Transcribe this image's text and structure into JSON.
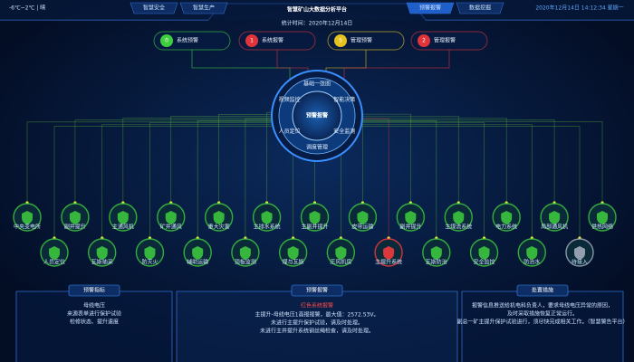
{
  "header": {
    "weather": "-6℃~2℃ | 晴",
    "nav_left": [
      "智慧安全",
      "智慧生产"
    ],
    "title": "智慧矿山大数据分析平台",
    "subtitle": "统计时间：2020年12月14日",
    "nav_right": [
      "预警报警",
      "数据挖掘"
    ],
    "active_nav": 0,
    "datetime": "2020年12月14日 14:12:34 星期一"
  },
  "alarms": [
    {
      "count": "0",
      "label": "系统预警",
      "color": "#3ecf3e"
    },
    {
      "count": "1",
      "label": "系统报警",
      "color": "#e0343a"
    },
    {
      "count": "5",
      "label": "管理预警",
      "color": "#e6c21f"
    },
    {
      "count": "2",
      "label": "管理报警",
      "color": "#e0343a"
    }
  ],
  "hub": {
    "title": "预警报警",
    "ring": [
      "基础一张图",
      "智能决策",
      "安全监测",
      "调度管理",
      "人员定位",
      "视频监控"
    ]
  },
  "nodes_top": [
    {
      "label": "中央变电所",
      "status": "normal"
    },
    {
      "label": "副井提升",
      "status": "normal"
    },
    {
      "label": "主通风机",
      "status": "normal"
    },
    {
      "label": "矿井通风",
      "status": "normal"
    },
    {
      "label": "重大灾害",
      "status": "normal"
    },
    {
      "label": "主排水系统",
      "status": "normal"
    },
    {
      "label": "主副井提升",
      "status": "normal"
    },
    {
      "label": "皮带运输",
      "status": "normal"
    },
    {
      "label": "副井提升",
      "status": "normal"
    },
    {
      "label": "主煤流系统",
      "status": "normal"
    },
    {
      "label": "电力系统",
      "status": "normal"
    },
    {
      "label": "局部通风机",
      "status": "normal"
    },
    {
      "label": "供热网络",
      "status": "normal"
    }
  ],
  "nodes_bottom": [
    {
      "label": "人员定位",
      "status": "normal"
    },
    {
      "label": "瓦斯抽采",
      "status": "normal"
    },
    {
      "label": "防灭火",
      "status": "normal"
    },
    {
      "label": "辅助运输",
      "status": "normal"
    },
    {
      "label": "顶板监测",
      "status": "normal"
    },
    {
      "label": "煤与瓦斯",
      "status": "normal"
    },
    {
      "label": "压风机房",
      "status": "normal"
    },
    {
      "label": "主提升系统",
      "status": "alarm"
    },
    {
      "label": "瓦斯防治",
      "status": "normal"
    },
    {
      "label": "安全监控",
      "status": "normal"
    },
    {
      "label": "防治水",
      "status": "normal"
    },
    {
      "label": "待接入",
      "status": "inactive"
    }
  ],
  "panels": {
    "left": {
      "title": "预警指标",
      "lines": [
        "母线电压",
        "来源表单进行保护试验",
        "检修状态、提升速度"
      ]
    },
    "middle": {
      "title": "预警报警",
      "heading": "红色系统报警",
      "lines": [
        "主提升-母线电压1高报报警，最大值：2572.53V。",
        "未进行主提升保护试验，请及时处理。",
        "未进行主井提升系统钢丝绳检查，请及时处理。"
      ]
    },
    "right": {
      "title": "处置措施",
      "lines": [
        "报警信息推送给机电科负责人，要求母线电压异常的原因，",
        "及时采取措施恢复正常运行。",
        "副总一矿主提升保护试验进行，须尽快完成相关工作。（智慧警告平台）"
      ]
    }
  }
}
